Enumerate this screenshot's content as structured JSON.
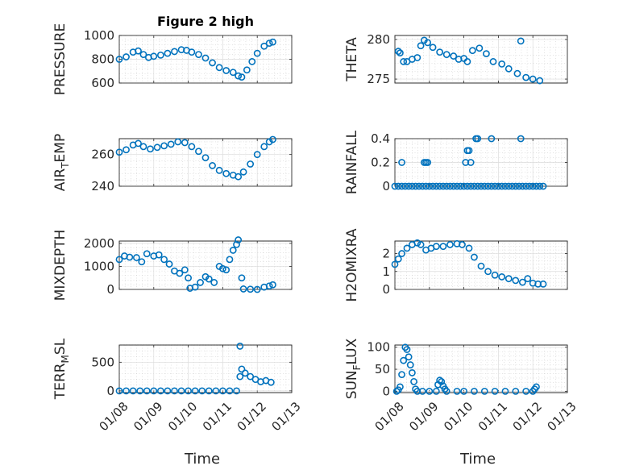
{
  "chart_data": [
    {
      "type": "scatter",
      "title": "Figure 2 high",
      "ylabel": [
        "PRESSURE"
      ],
      "xlabel": "",
      "ylim": [
        600,
        1000
      ],
      "yticks": [
        600,
        800,
        1000
      ],
      "points": [
        [
          8.0,
          800
        ],
        [
          8.2,
          820
        ],
        [
          8.4,
          860
        ],
        [
          8.55,
          870
        ],
        [
          8.7,
          840
        ],
        [
          8.85,
          815
        ],
        [
          9.0,
          825
        ],
        [
          9.2,
          835
        ],
        [
          9.4,
          850
        ],
        [
          9.6,
          865
        ],
        [
          9.8,
          880
        ],
        [
          9.95,
          875
        ],
        [
          10.1,
          860
        ],
        [
          10.3,
          840
        ],
        [
          10.5,
          810
        ],
        [
          10.7,
          770
        ],
        [
          10.9,
          730
        ],
        [
          11.1,
          705
        ],
        [
          11.3,
          690
        ],
        [
          11.45,
          660
        ],
        [
          11.55,
          650
        ],
        [
          11.7,
          710
        ],
        [
          11.85,
          780
        ],
        [
          12.0,
          850
        ],
        [
          12.2,
          910
        ],
        [
          12.35,
          935
        ],
        [
          12.45,
          945
        ]
      ]
    },
    {
      "type": "scatter",
      "ylabel": [
        "THETA"
      ],
      "xlabel": "",
      "ylim": [
        274.5,
        280.5
      ],
      "yticks": [
        275,
        280
      ],
      "points": [
        [
          8.1,
          278.5
        ],
        [
          8.15,
          278.3
        ],
        [
          8.25,
          277.2
        ],
        [
          8.35,
          277.2
        ],
        [
          8.5,
          277.5
        ],
        [
          8.65,
          277.7
        ],
        [
          8.75,
          279.2
        ],
        [
          8.85,
          279.9
        ],
        [
          8.95,
          279.6
        ],
        [
          9.1,
          279.0
        ],
        [
          9.3,
          278.4
        ],
        [
          9.5,
          278.1
        ],
        [
          9.7,
          277.9
        ],
        [
          9.85,
          277.5
        ],
        [
          10.0,
          277.6
        ],
        [
          10.1,
          277.2
        ],
        [
          10.25,
          278.6
        ],
        [
          10.45,
          278.9
        ],
        [
          10.65,
          278.2
        ],
        [
          10.85,
          277.2
        ],
        [
          11.1,
          276.9
        ],
        [
          11.3,
          276.3
        ],
        [
          11.55,
          275.7
        ],
        [
          11.8,
          275.2
        ],
        [
          12.0,
          275.0
        ],
        [
          12.2,
          274.8
        ],
        [
          11.65,
          279.8
        ]
      ]
    },
    {
      "type": "scatter",
      "ylabel": [
        "AIR",
        "T",
        "EMP"
      ],
      "xlabel": "",
      "ylim": [
        240,
        270
      ],
      "yticks": [
        240,
        260
      ],
      "points": [
        [
          8.0,
          261.5
        ],
        [
          8.2,
          263
        ],
        [
          8.4,
          266
        ],
        [
          8.55,
          267
        ],
        [
          8.7,
          265
        ],
        [
          8.9,
          263.5
        ],
        [
          9.1,
          264.5
        ],
        [
          9.3,
          265.5
        ],
        [
          9.5,
          266.5
        ],
        [
          9.7,
          268
        ],
        [
          9.9,
          267.5
        ],
        [
          10.1,
          265
        ],
        [
          10.3,
          262
        ],
        [
          10.5,
          258
        ],
        [
          10.7,
          253
        ],
        [
          10.9,
          250
        ],
        [
          11.1,
          248
        ],
        [
          11.3,
          247
        ],
        [
          11.45,
          246
        ],
        [
          11.6,
          249
        ],
        [
          11.8,
          254
        ],
        [
          12.0,
          260
        ],
        [
          12.2,
          265
        ],
        [
          12.35,
          268
        ],
        [
          12.45,
          269.5
        ]
      ]
    },
    {
      "type": "scatter",
      "ylabel": [
        "RAINFALL"
      ],
      "xlabel": "",
      "ylim": [
        0,
        0.4
      ],
      "yticks": [
        0,
        0.2,
        0.4
      ],
      "points": [
        [
          8.0,
          0
        ],
        [
          8.1,
          0
        ],
        [
          8.2,
          0
        ],
        [
          8.3,
          0
        ],
        [
          8.4,
          0
        ],
        [
          8.5,
          0
        ],
        [
          8.6,
          0
        ],
        [
          8.7,
          0
        ],
        [
          8.8,
          0
        ],
        [
          8.9,
          0
        ],
        [
          9.0,
          0
        ],
        [
          9.1,
          0
        ],
        [
          9.2,
          0
        ],
        [
          9.3,
          0
        ],
        [
          9.4,
          0
        ],
        [
          9.5,
          0
        ],
        [
          9.6,
          0
        ],
        [
          9.7,
          0
        ],
        [
          9.8,
          0
        ],
        [
          9.9,
          0
        ],
        [
          10.0,
          0
        ],
        [
          10.1,
          0
        ],
        [
          10.2,
          0
        ],
        [
          10.3,
          0
        ],
        [
          10.4,
          0
        ],
        [
          10.5,
          0
        ],
        [
          10.6,
          0
        ],
        [
          10.7,
          0
        ],
        [
          10.8,
          0
        ],
        [
          10.9,
          0
        ],
        [
          11.0,
          0
        ],
        [
          11.1,
          0
        ],
        [
          11.2,
          0
        ],
        [
          11.3,
          0
        ],
        [
          11.4,
          0
        ],
        [
          11.5,
          0
        ],
        [
          11.6,
          0
        ],
        [
          11.7,
          0
        ],
        [
          11.8,
          0
        ],
        [
          11.9,
          0
        ],
        [
          12.0,
          0
        ],
        [
          12.1,
          0
        ],
        [
          12.2,
          0
        ],
        [
          12.3,
          0
        ],
        [
          8.2,
          0.2
        ],
        [
          8.85,
          0.2
        ],
        [
          8.9,
          0.2
        ],
        [
          8.95,
          0.2
        ],
        [
          10.1,
          0.3
        ],
        [
          10.15,
          0.3
        ],
        [
          10.05,
          0.2
        ],
        [
          10.2,
          0.2
        ],
        [
          10.35,
          0.4
        ],
        [
          10.4,
          0.4
        ],
        [
          10.8,
          0.4
        ],
        [
          11.65,
          0.4
        ]
      ]
    },
    {
      "type": "scatter",
      "ylabel": [
        "MIXDEPTH"
      ],
      "xlabel": "",
      "ylim": [
        0,
        2100
      ],
      "yticks": [
        0,
        1000,
        2000
      ],
      "points": [
        [
          8.0,
          1300
        ],
        [
          8.15,
          1450
        ],
        [
          8.3,
          1400
        ],
        [
          8.5,
          1380
        ],
        [
          8.65,
          1200
        ],
        [
          8.8,
          1550
        ],
        [
          9.0,
          1450
        ],
        [
          9.15,
          1500
        ],
        [
          9.3,
          1300
        ],
        [
          9.45,
          1100
        ],
        [
          9.6,
          800
        ],
        [
          9.75,
          700
        ],
        [
          9.9,
          850
        ],
        [
          10.0,
          500
        ],
        [
          10.05,
          50
        ],
        [
          10.2,
          100
        ],
        [
          10.35,
          300
        ],
        [
          10.5,
          550
        ],
        [
          10.6,
          450
        ],
        [
          10.75,
          300
        ],
        [
          10.9,
          1000
        ],
        [
          11.0,
          900
        ],
        [
          11.1,
          850
        ],
        [
          11.2,
          1300
        ],
        [
          11.3,
          1700
        ],
        [
          11.4,
          1950
        ],
        [
          11.45,
          2150
        ],
        [
          11.55,
          500
        ],
        [
          11.6,
          20
        ],
        [
          11.8,
          10
        ],
        [
          12.0,
          0
        ],
        [
          12.2,
          100
        ],
        [
          12.35,
          150
        ],
        [
          12.45,
          200
        ]
      ]
    },
    {
      "type": "scatter",
      "ylabel": [
        "H2OMIXRA"
      ],
      "xlabel": "",
      "ylim": [
        0,
        2.7
      ],
      "yticks": [
        0,
        1,
        2
      ],
      "points": [
        [
          8.0,
          1.4
        ],
        [
          8.1,
          1.7
        ],
        [
          8.2,
          2.0
        ],
        [
          8.35,
          2.3
        ],
        [
          8.5,
          2.5
        ],
        [
          8.65,
          2.6
        ],
        [
          8.75,
          2.5
        ],
        [
          8.9,
          2.2
        ],
        [
          9.05,
          2.3
        ],
        [
          9.2,
          2.4
        ],
        [
          9.4,
          2.4
        ],
        [
          9.6,
          2.5
        ],
        [
          9.8,
          2.55
        ],
        [
          9.95,
          2.5
        ],
        [
          10.15,
          2.3
        ],
        [
          10.3,
          1.8
        ],
        [
          10.5,
          1.3
        ],
        [
          10.7,
          1.0
        ],
        [
          10.9,
          0.8
        ],
        [
          11.1,
          0.7
        ],
        [
          11.3,
          0.6
        ],
        [
          11.5,
          0.5
        ],
        [
          11.7,
          0.4
        ],
        [
          11.85,
          0.6
        ],
        [
          12.0,
          0.35
        ],
        [
          12.15,
          0.3
        ],
        [
          12.3,
          0.3
        ]
      ]
    },
    {
      "type": "scatter",
      "ylabel": [
        "TERR",
        "M",
        "SL"
      ],
      "xlabel": "Time",
      "ylim": [
        -30,
        800
      ],
      "yticks": [
        0,
        500
      ],
      "xticks": [
        "01/08",
        "01/09",
        "01/10",
        "01/11",
        "01/12",
        "01/13"
      ],
      "points": [
        [
          8.0,
          0
        ],
        [
          8.2,
          0
        ],
        [
          8.4,
          0
        ],
        [
          8.6,
          0
        ],
        [
          8.8,
          0
        ],
        [
          9.0,
          0
        ],
        [
          9.2,
          0
        ],
        [
          9.4,
          0
        ],
        [
          9.6,
          0
        ],
        [
          9.8,
          0
        ],
        [
          10.0,
          0
        ],
        [
          10.2,
          0
        ],
        [
          10.4,
          0
        ],
        [
          10.6,
          0
        ],
        [
          10.8,
          0
        ],
        [
          11.0,
          0
        ],
        [
          11.2,
          0
        ],
        [
          11.4,
          0
        ],
        [
          11.5,
          780
        ],
        [
          11.55,
          380
        ],
        [
          11.5,
          250
        ],
        [
          11.65,
          310
        ],
        [
          11.8,
          250
        ],
        [
          11.95,
          200
        ],
        [
          12.1,
          160
        ],
        [
          12.25,
          180
        ],
        [
          12.4,
          150
        ]
      ]
    },
    {
      "type": "scatter",
      "ylabel": [
        "SUN",
        "F",
        "LUX"
      ],
      "xlabel": "Time",
      "ylim": [
        -3,
        105
      ],
      "yticks": [
        0,
        50,
        100
      ],
      "xticks": [
        "01/08",
        "01/09",
        "01/10",
        "01/11",
        "01/12",
        "01/13"
      ],
      "points": [
        [
          8.05,
          0
        ],
        [
          8.1,
          3
        ],
        [
          8.15,
          10
        ],
        [
          8.2,
          38
        ],
        [
          8.25,
          70
        ],
        [
          8.3,
          100
        ],
        [
          8.35,
          95
        ],
        [
          8.4,
          78
        ],
        [
          8.45,
          60
        ],
        [
          8.5,
          42
        ],
        [
          8.55,
          22
        ],
        [
          8.6,
          5
        ],
        [
          8.65,
          0
        ],
        [
          8.8,
          0
        ],
        [
          9.0,
          0
        ],
        [
          9.2,
          0
        ],
        [
          9.25,
          15
        ],
        [
          9.3,
          25
        ],
        [
          9.35,
          22
        ],
        [
          9.4,
          12
        ],
        [
          9.45,
          5
        ],
        [
          9.5,
          0
        ],
        [
          9.8,
          0
        ],
        [
          10.0,
          0
        ],
        [
          10.3,
          0
        ],
        [
          10.6,
          0
        ],
        [
          10.9,
          0
        ],
        [
          11.2,
          0
        ],
        [
          11.5,
          0
        ],
        [
          11.8,
          0
        ],
        [
          12.0,
          0
        ],
        [
          12.05,
          5
        ],
        [
          12.1,
          10
        ]
      ]
    }
  ],
  "colors": {
    "marker": "#0072BD"
  }
}
